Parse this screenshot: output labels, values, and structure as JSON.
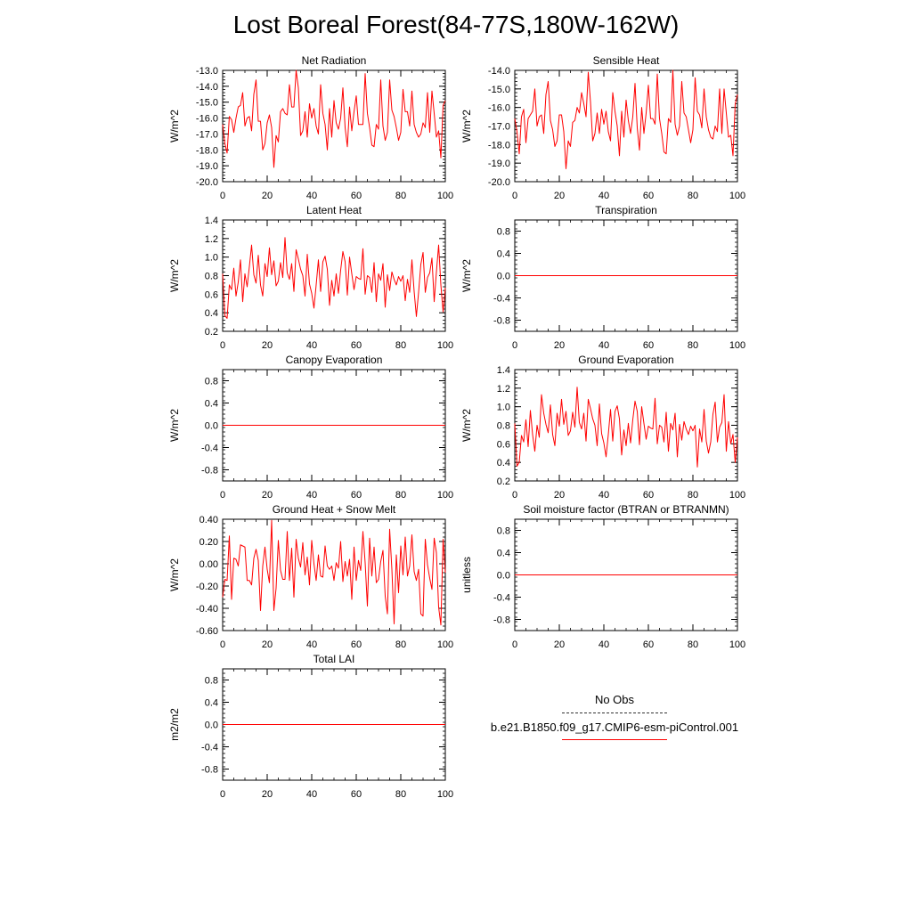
{
  "page": {
    "title": "Lost Boreal Forest(84-77S,180W-162W)"
  },
  "legend": {
    "obs_label": "No Obs",
    "case_label": "b.e21.B1850.f09_g17.CMIP6-esm-piControl.001",
    "obs_color": "#333333",
    "case_color": "#ff0000"
  },
  "chart_data": [
    {
      "id": "net-radiation",
      "type": "line",
      "title": "Net Radiation",
      "ylabel": "W/m^2",
      "xlabel": "",
      "xlim": [
        0,
        100
      ],
      "ylim": [
        -20,
        -13
      ],
      "xticks": [
        0,
        20,
        40,
        60,
        80,
        100
      ],
      "xticklabels": [
        "0",
        "20",
        "40",
        "60",
        "80",
        "100"
      ],
      "yticks": [
        -20,
        -19,
        -18,
        -17,
        -16,
        -15,
        -14,
        -13
      ],
      "yticklabels": [
        "-20.0",
        "-19.0",
        "-18.0",
        "-17.0",
        "-16.0",
        "-15.0",
        "-14.0",
        "-13.0"
      ],
      "color": "#ff0000",
      "series": [
        {
          "name": "b.e21.B1850.f09_g17.CMIP6-esm-piControl.001",
          "values": [
            -16.4,
            -17.6,
            -18.2,
            -15.9,
            -16.1,
            -16.9,
            -16.0,
            -15.3,
            -15.2,
            -14.4,
            -16.5,
            -16.0,
            -15.9,
            -16.8,
            -14.5,
            -13.6,
            -16.2,
            -16.2,
            -18.0,
            -17.6,
            -16.3,
            -15.8,
            -16.6,
            -19.1,
            -17.1,
            -17.5,
            -15.6,
            -15.4,
            -15.7,
            -15.8,
            -13.9,
            -15.3,
            -15.3,
            -13.0,
            -14.1,
            -17.1,
            -16.8,
            -15.6,
            -17.2,
            -15.1,
            -16.0,
            -15.4,
            -16.5,
            -17.0,
            -13.9,
            -15.7,
            -16.4,
            -18.0,
            -15.4,
            -17.2,
            -14.9,
            -16.3,
            -16.7,
            -16.0,
            -14.1,
            -16.6,
            -17.8,
            -15.3,
            -16.8,
            -15.6,
            -14.6,
            -16.4,
            -16.4,
            -16.4,
            -13.2,
            -15.7,
            -16.6,
            -17.7,
            -17.8,
            -16.4,
            -16.7,
            -13.6,
            -16.5,
            -17.4,
            -16.9,
            -13.6,
            -15.5,
            -15.9,
            -16.6,
            -17.4,
            -16.9,
            -14.2,
            -15.6,
            -15.6,
            -16.5,
            -14.3,
            -16.4,
            -16.9,
            -17.2,
            -17.0,
            -16.3,
            -16.6,
            -14.4,
            -16.9,
            -14.3,
            -15.7,
            -17.2,
            -16.8,
            -18.5,
            -15.2,
            -14.9
          ]
        }
      ]
    },
    {
      "id": "sensible-heat",
      "type": "line",
      "title": "Sensible Heat",
      "ylabel": "W/m^2",
      "xlabel": "",
      "xlim": [
        0,
        100
      ],
      "ylim": [
        -20,
        -14
      ],
      "xticks": [
        0,
        20,
        40,
        60,
        80,
        100
      ],
      "xticklabels": [
        "0",
        "20",
        "40",
        "60",
        "80",
        "100"
      ],
      "yticks": [
        -20,
        -19,
        -18,
        -17,
        -16,
        -15,
        -14
      ],
      "yticklabels": [
        "-20.0",
        "-19.0",
        "-18.0",
        "-17.0",
        "-16.0",
        "-15.0",
        "-14.0"
      ],
      "color": "#ff0000",
      "series": [
        {
          "name": "b.e21.B1850.f09_g17.CMIP6-esm-piControl.001",
          "values": [
            -16.6,
            -17.3,
            -18.5,
            -16.5,
            -16.1,
            -17.9,
            -16.6,
            -16.4,
            -16.2,
            -15.0,
            -17.0,
            -16.5,
            -16.4,
            -17.4,
            -15.3,
            -14.6,
            -16.7,
            -17.2,
            -18.1,
            -17.8,
            -16.4,
            -16.4,
            -17.3,
            -19.3,
            -17.8,
            -18.1,
            -16.8,
            -16.7,
            -16.0,
            -16.3,
            -15.2,
            -15.8,
            -16.5,
            -14.1,
            -15.7,
            -17.8,
            -17.4,
            -16.3,
            -17.4,
            -16.1,
            -16.9,
            -16.2,
            -17.3,
            -17.8,
            -15.2,
            -16.2,
            -17.0,
            -18.6,
            -16.2,
            -17.6,
            -15.6,
            -16.7,
            -17.4,
            -16.5,
            -14.7,
            -17.1,
            -18.3,
            -16.0,
            -17.4,
            -16.3,
            -14.8,
            -16.6,
            -16.6,
            -16.9,
            -14.2,
            -16.6,
            -17.4,
            -18.4,
            -18.5,
            -16.6,
            -16.8,
            -14.0,
            -16.9,
            -17.5,
            -17.0,
            -14.6,
            -16.3,
            -16.5,
            -17.2,
            -17.9,
            -17.2,
            -14.4,
            -16.2,
            -16.4,
            -17.1,
            -15.0,
            -16.5,
            -17.2,
            -17.6,
            -17.7,
            -17.0,
            -17.3,
            -15.0,
            -17.4,
            -15.0,
            -16.3,
            -17.6,
            -17.5,
            -18.6,
            -15.8,
            -15.3
          ]
        }
      ]
    },
    {
      "id": "latent-heat",
      "type": "line",
      "title": "Latent Heat",
      "ylabel": "W/m^2",
      "xlabel": "",
      "xlim": [
        0,
        100
      ],
      "ylim": [
        0.2,
        1.4
      ],
      "xticks": [
        0,
        20,
        40,
        60,
        80,
        100
      ],
      "xticklabels": [
        "0",
        "20",
        "40",
        "60",
        "80",
        "100"
      ],
      "yticks": [
        0.2,
        0.4,
        0.6,
        0.8,
        1.0,
        1.2,
        1.4
      ],
      "yticklabels": [
        "0.2",
        "0.4",
        "0.6",
        "0.8",
        "1.0",
        "1.2",
        "1.4"
      ],
      "color": "#ff0000",
      "series": [
        {
          "name": "b.e21.B1850.f09_g17.CMIP6-esm-piControl.001",
          "values": [
            0.82,
            0.37,
            0.34,
            0.7,
            0.65,
            0.88,
            0.58,
            0.73,
            0.97,
            0.52,
            0.82,
            0.68,
            0.9,
            1.13,
            0.81,
            0.72,
            1.02,
            0.7,
            0.58,
            0.93,
            0.79,
            1.1,
            0.81,
            0.96,
            0.69,
            0.74,
            0.94,
            0.78,
            1.21,
            0.83,
            0.76,
            0.93,
            0.63,
            1.08,
            0.98,
            0.87,
            0.8,
            0.58,
            1.03,
            0.71,
            0.61,
            0.45,
            0.7,
            0.97,
            0.63,
            0.95,
            1.01,
            0.87,
            0.48,
            0.75,
            0.58,
            0.82,
            0.61,
            0.86,
            1.06,
            0.95,
            0.59,
            1.0,
            0.82,
            0.65,
            0.79,
            0.77,
            0.76,
            1.09,
            0.6,
            0.8,
            0.78,
            0.62,
            0.94,
            0.52,
            0.82,
            0.75,
            0.93,
            0.46,
            0.81,
            0.64,
            0.84,
            0.76,
            0.7,
            0.79,
            0.74,
            0.8,
            0.53,
            0.76,
            0.62,
            0.97,
            0.63,
            0.36,
            0.62,
            0.92,
            1.05,
            0.62,
            0.78,
            0.83,
            0.99,
            0.52,
            0.84,
            1.13,
            0.7,
            0.41,
            0.67
          ]
        }
      ]
    },
    {
      "id": "transpiration",
      "type": "line",
      "title": "Transpiration",
      "ylabel": "W/m^2",
      "xlabel": "",
      "xlim": [
        0,
        100
      ],
      "ylim": [
        -1,
        1
      ],
      "xticks": [
        0,
        20,
        40,
        60,
        80,
        100
      ],
      "xticklabels": [
        "0",
        "20",
        "40",
        "60",
        "80",
        "100"
      ],
      "yticks": [
        -0.8,
        -0.4,
        0.0,
        0.4,
        0.8
      ],
      "yticklabels": [
        "-0.8",
        "-0.4",
        "0.0",
        "0.4",
        "0.8"
      ],
      "color": "#ff0000",
      "series": [
        {
          "name": "b.e21.B1850.f09_g17.CMIP6-esm-piControl.001",
          "values": [
            0,
            0
          ]
        }
      ]
    },
    {
      "id": "canopy-evaporation",
      "type": "line",
      "title": "Canopy Evaporation",
      "ylabel": "W/m^2",
      "xlabel": "",
      "xlim": [
        0,
        100
      ],
      "ylim": [
        -1,
        1
      ],
      "xticks": [
        0,
        20,
        40,
        60,
        80,
        100
      ],
      "xticklabels": [
        "0",
        "20",
        "40",
        "60",
        "80",
        "100"
      ],
      "yticks": [
        -0.8,
        -0.4,
        0.0,
        0.4,
        0.8
      ],
      "yticklabels": [
        "-0.8",
        "-0.4",
        "0.0",
        "0.4",
        "0.8"
      ],
      "color": "#ff0000",
      "series": [
        {
          "name": "b.e21.B1850.f09_g17.CMIP6-esm-piControl.001",
          "values": [
            0,
            0
          ]
        }
      ]
    },
    {
      "id": "ground-evaporation",
      "type": "line",
      "title": "Ground Evaporation",
      "ylabel": "W/m^2",
      "xlabel": "",
      "xlim": [
        0,
        100
      ],
      "ylim": [
        0.2,
        1.4
      ],
      "xticks": [
        0,
        20,
        40,
        60,
        80,
        100
      ],
      "xticklabels": [
        "0",
        "20",
        "40",
        "60",
        "80",
        "100"
      ],
      "yticks": [
        0.2,
        0.4,
        0.6,
        0.8,
        1.0,
        1.2,
        1.4
      ],
      "yticklabels": [
        "0.2",
        "0.4",
        "0.6",
        "0.8",
        "1.0",
        "1.2",
        "1.4"
      ],
      "color": "#ff0000",
      "series": [
        {
          "name": "b.e21.B1850.f09_g17.CMIP6-esm-piControl.001",
          "values": [
            0.82,
            0.36,
            0.4,
            0.69,
            0.62,
            0.86,
            0.57,
            0.96,
            0.7,
            0.52,
            0.8,
            0.67,
            1.13,
            0.93,
            0.81,
            0.72,
            1.02,
            0.7,
            0.58,
            0.93,
            0.79,
            1.08,
            0.81,
            0.95,
            0.69,
            0.74,
            0.94,
            0.78,
            1.21,
            0.83,
            0.76,
            0.93,
            0.63,
            1.08,
            0.98,
            0.87,
            0.8,
            0.58,
            1.03,
            0.71,
            0.61,
            0.46,
            0.7,
            0.97,
            0.63,
            0.95,
            1.01,
            0.87,
            0.48,
            0.75,
            0.58,
            0.82,
            0.61,
            0.86,
            1.06,
            0.95,
            0.59,
            1.0,
            0.82,
            0.65,
            0.79,
            0.77,
            0.76,
            1.09,
            0.6,
            0.8,
            0.78,
            0.62,
            0.94,
            0.52,
            0.82,
            0.75,
            0.93,
            0.46,
            0.81,
            0.64,
            0.84,
            0.76,
            0.7,
            0.79,
            0.74,
            0.8,
            0.35,
            0.76,
            0.62,
            0.97,
            0.63,
            0.5,
            0.62,
            0.92,
            1.05,
            0.62,
            0.78,
            0.83,
            1.13,
            0.52,
            0.84,
            0.6,
            0.7,
            0.4,
            0.67
          ]
        }
      ]
    },
    {
      "id": "ground-heat-snow-melt",
      "type": "line",
      "title": "Ground Heat + Snow Melt",
      "ylabel": "W/m^2",
      "xlabel": "",
      "xlim": [
        0,
        100
      ],
      "ylim": [
        -0.6,
        0.4
      ],
      "xticks": [
        0,
        20,
        40,
        60,
        80,
        100
      ],
      "xticklabels": [
        "0",
        "20",
        "40",
        "60",
        "80",
        "100"
      ],
      "yticks": [
        -0.6,
        -0.4,
        -0.2,
        0.0,
        0.2,
        0.4
      ],
      "yticklabels": [
        "-0.60",
        "-0.40",
        "-0.20",
        "0.00",
        "0.20",
        "0.40"
      ],
      "color": "#ff0000",
      "series": [
        {
          "name": "b.e21.B1850.f09_g17.CMIP6-esm-piControl.001",
          "values": [
            -0.3,
            -0.14,
            -0.15,
            0.25,
            -0.32,
            0.05,
            0.04,
            -0.02,
            0.17,
            0.16,
            0.15,
            -0.15,
            -0.15,
            -0.19,
            0.05,
            0.13,
            0.03,
            -0.42,
            -0.02,
            0.15,
            -0.05,
            -0.17,
            0.39,
            -0.42,
            -0.22,
            0.21,
            -0.06,
            -0.14,
            -0.14,
            0.29,
            -0.15,
            0.14,
            -0.3,
            0.22,
            0.05,
            -0.03,
            0.19,
            -0.1,
            0.06,
            -0.19,
            0.21,
            0.0,
            -0.15,
            0.08,
            -0.11,
            -0.12,
            0.16,
            -0.02,
            -0.05,
            -0.02,
            -0.15,
            0.01,
            -0.04,
            0.2,
            -0.16,
            0.02,
            -0.11,
            0.04,
            -0.32,
            0.15,
            -0.15,
            0.03,
            -0.06,
            0.29,
            0.01,
            -0.38,
            0.23,
            -0.11,
            0.15,
            -0.17,
            -0.14,
            0.02,
            0.12,
            -0.29,
            -0.45,
            0.31,
            -0.05,
            -0.54,
            0.08,
            -0.26,
            0.16,
            -0.1,
            0.24,
            -0.11,
            -0.02,
            0.26,
            -0.07,
            -0.15,
            -0.05,
            -0.45,
            -0.47,
            0.22,
            -0.01,
            -0.13,
            -0.23,
            0.23,
            0.1,
            -0.39,
            -0.55,
            0.22,
            -0.08
          ]
        }
      ]
    },
    {
      "id": "soil-moisture-factor",
      "type": "line",
      "title": "Soil moisture factor (BTRAN or BTRANMN)",
      "ylabel": "unitless",
      "xlabel": "",
      "xlim": [
        0,
        100
      ],
      "ylim": [
        -1,
        1
      ],
      "xticks": [
        0,
        20,
        40,
        60,
        80,
        100
      ],
      "xticklabels": [
        "0",
        "20",
        "40",
        "60",
        "80",
        "100"
      ],
      "yticks": [
        -0.8,
        -0.4,
        0.0,
        0.4,
        0.8
      ],
      "yticklabels": [
        "-0.8",
        "-0.4",
        "0.0",
        "0.4",
        "0.8"
      ],
      "color": "#ff0000",
      "series": [
        {
          "name": "b.e21.B1850.f09_g17.CMIP6-esm-piControl.001",
          "values": [
            0,
            0
          ]
        }
      ]
    },
    {
      "id": "total-lai",
      "type": "line",
      "title": "Total LAI",
      "ylabel": "m2/m2",
      "xlabel": "",
      "xlim": [
        0,
        100
      ],
      "ylim": [
        -1,
        1
      ],
      "xticks": [
        0,
        20,
        40,
        60,
        80,
        100
      ],
      "xticklabels": [
        "0",
        "20",
        "40",
        "60",
        "80",
        "100"
      ],
      "yticks": [
        -0.8,
        -0.4,
        0.0,
        0.4,
        0.8
      ],
      "yticklabels": [
        "-0.8",
        "-0.4",
        "0.0",
        "0.4",
        "0.8"
      ],
      "color": "#ff0000",
      "series": [
        {
          "name": "b.e21.B1850.f09_g17.CMIP6-esm-piControl.001",
          "values": [
            0,
            0
          ]
        }
      ]
    }
  ]
}
